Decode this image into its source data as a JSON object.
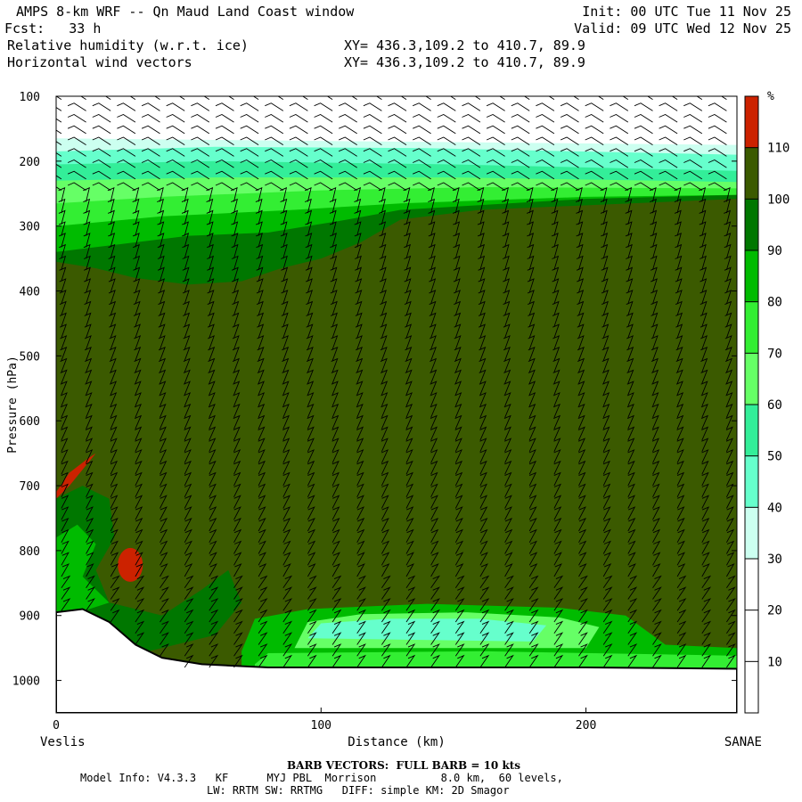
{
  "header": {
    "title_left": "AMPS 8-km WRF -- Qn Maud Land Coast window",
    "init": "Init: 00 UTC Tue 11 Nov 25",
    "fcst": "Fcst:   33 h",
    "valid": "Valid: 09 UTC Wed 12 Nov 25",
    "field1": "Relative humidity (w.r.t. ice)",
    "field2": "Horizontal wind vectors",
    "xy1": "XY= 436.3,109.2 to 410.7, 89.9",
    "xy2": "XY= 436.3,109.2 to 410.7, 89.9"
  },
  "chart_data": {
    "type": "heatmap",
    "title": "Relative humidity (w.r.t. ice)",
    "xlabel": "Distance (km)",
    "ylabel": "Pressure (hPa)",
    "x_start_label": "Veslis",
    "x_end_label": "SANAE",
    "xlim": [
      0,
      257
    ],
    "ylim": [
      1050,
      100
    ],
    "x_ticks": [
      0,
      100,
      200
    ],
    "y_ticks": [
      100,
      200,
      300,
      400,
      500,
      600,
      700,
      800,
      900,
      1000
    ],
    "colorbar": {
      "unit": "%",
      "levels": [
        10,
        20,
        30,
        40,
        50,
        60,
        70,
        80,
        90,
        100,
        110
      ],
      "colors": [
        "#ffffff",
        "#ffffff",
        "#ffffff",
        "#ccfff0",
        "#66ffcc",
        "#33ee99",
        "#66ff66",
        "#33ee33",
        "#00bb00",
        "#007700",
        "#3b5a00",
        "#cc2200"
      ]
    },
    "terrain_surface_hPa": [
      {
        "x": 0,
        "p": 895
      },
      {
        "x": 10,
        "p": 890
      },
      {
        "x": 20,
        "p": 910
      },
      {
        "x": 30,
        "p": 945
      },
      {
        "x": 40,
        "p": 965
      },
      {
        "x": 55,
        "p": 975
      },
      {
        "x": 80,
        "p": 980
      },
      {
        "x": 120,
        "p": 980
      },
      {
        "x": 200,
        "p": 980
      },
      {
        "x": 257,
        "p": 982
      }
    ]
  },
  "footer": {
    "barb_note": "BARB VECTORS:  FULL BARB = 10 kts",
    "model_info": "Model Info: V4.3.3   KF      MYJ PBL  Morrison          8.0 km,  60 levels,",
    "model_info2": "LW: RRTM SW: RRTMG   DIFF: simple KM: 2D Smagor"
  }
}
